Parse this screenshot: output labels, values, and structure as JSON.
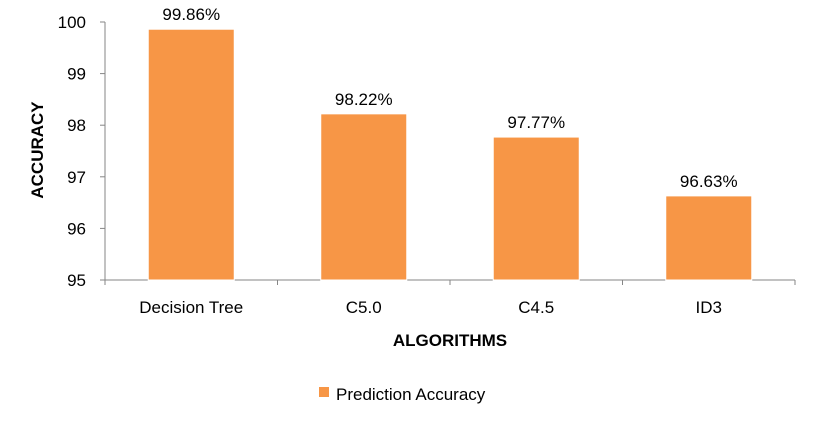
{
  "chart_data": {
    "type": "bar",
    "categories": [
      "Decision Tree",
      "C5.0",
      "C4.5",
      "ID3"
    ],
    "series": [
      {
        "name": "Prediction Accuracy",
        "values": [
          99.86,
          98.22,
          97.77,
          96.63
        ],
        "color": "#F79646"
      }
    ],
    "data_labels": [
      "99.86%",
      "98.22%",
      "97.77%",
      "96.63%"
    ],
    "xlabel": "ALGORITHMS",
    "ylabel": "ACCURACY",
    "ylim": [
      95,
      100
    ],
    "yticks": [
      95,
      96,
      97,
      98,
      99,
      100
    ],
    "ytick_labels": [
      "95",
      "96",
      "97",
      "98",
      "99",
      "100"
    ],
    "grid": false,
    "legend_position": "bottom"
  }
}
